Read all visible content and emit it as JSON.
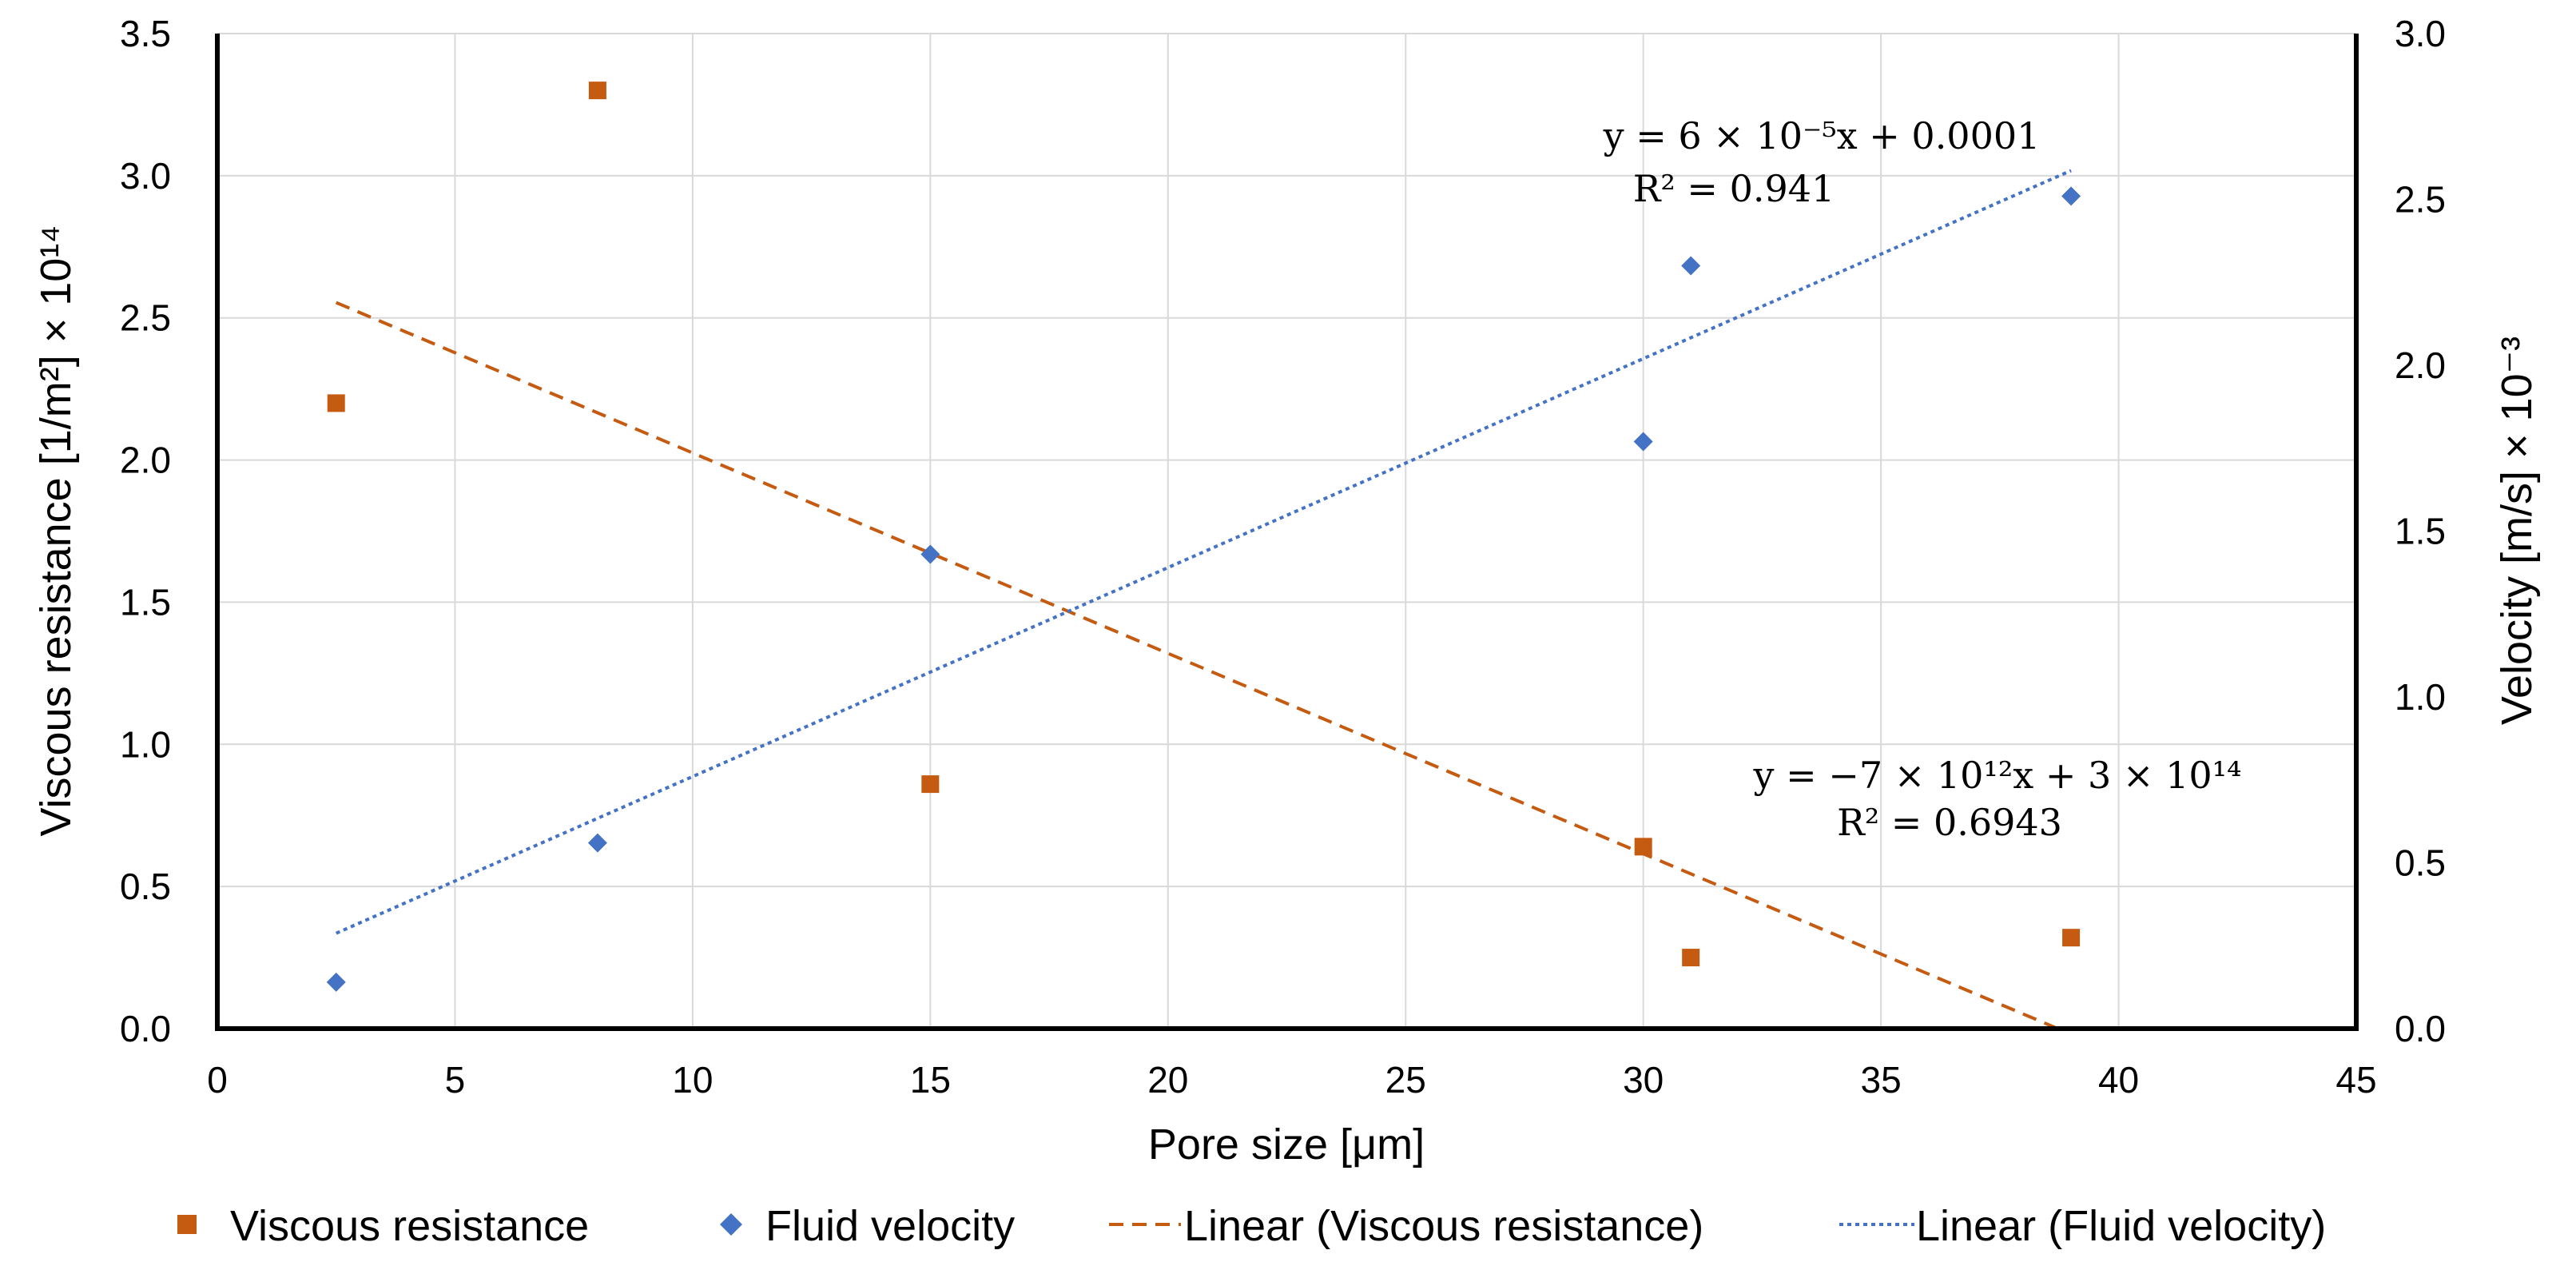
{
  "chart_data": {
    "type": "scatter",
    "x": [
      2.5,
      8,
      15,
      30,
      31,
      39
    ],
    "xlabel": "Pore size [μm]",
    "xlim": [
      0,
      45
    ],
    "xticks": [
      0,
      5,
      10,
      15,
      20,
      25,
      30,
      35,
      40,
      45
    ],
    "ylabel": "Viscous resistance [1/m²] × 10¹⁴",
    "ylim": [
      0,
      3.5
    ],
    "yticks": [
      "0.0",
      "0.5",
      "1.0",
      "1.5",
      "2.0",
      "2.5",
      "3.0",
      "3.5"
    ],
    "y2label": "Velocity [m/s] × 10⁻³",
    "y2lim": [
      0,
      3.0
    ],
    "y2ticks": [
      "0.0",
      "0.5",
      "1.0",
      "1.5",
      "2.0",
      "2.5",
      "3.0"
    ],
    "grid": true,
    "legend_position": "bottom",
    "series": [
      {
        "name": "Viscous resistance",
        "axis": "left",
        "marker": "square",
        "color": "#C55A11",
        "x": [
          2.5,
          8,
          15,
          30,
          31,
          39
        ],
        "values": [
          2.2,
          3.3,
          0.86,
          0.64,
          0.25,
          0.32
        ]
      },
      {
        "name": "Fluid velocity",
        "axis": "right",
        "marker": "diamond",
        "color": "#4472C4",
        "x": [
          2.5,
          8,
          15,
          30,
          31,
          39
        ],
        "values": [
          0.14,
          0.56,
          1.43,
          1.77,
          2.3,
          2.51
        ]
      }
    ],
    "trendlines": [
      {
        "name": "Linear (Viscous resistance)",
        "axis": "left",
        "style": "dashed",
        "color": "#C55A11",
        "x_start": 2.5,
        "slope": -0.0705,
        "intercept": 2.73,
        "equation": "y = −7 × 10¹²x + 3 × 10¹⁴",
        "r2": "R² = 0.6943"
      },
      {
        "name": "Linear (Fluid velocity)",
        "axis": "right",
        "style": "dotted",
        "color": "#4472C4",
        "x_start": 2.5,
        "x_end": 39,
        "slope": 0.063,
        "intercept": 0.13,
        "equation": "y = 6 × 10⁻⁵x + 0.0001",
        "r2": "R² = 0.941"
      }
    ]
  }
}
